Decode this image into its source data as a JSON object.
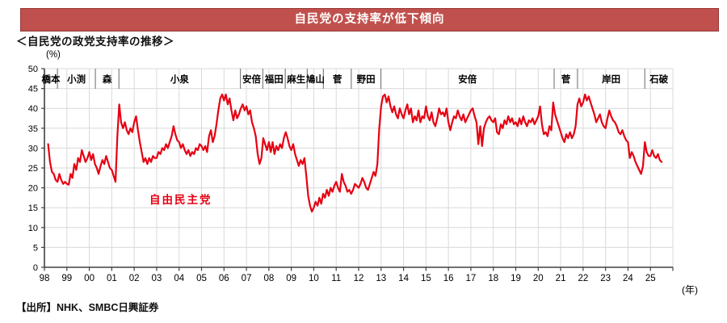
{
  "banner": {
    "title": "自民党の支持率が低下傾向",
    "bg_color": "#c0504d",
    "border_color": "#963634",
    "text_color": "#ffffff"
  },
  "heading": "＜自民党の政党支持率の推移＞",
  "source_note": "【出所】NHK、SMBC日興証券",
  "chart_data": {
    "type": "line",
    "title": "自民党の政党支持率の推移",
    "unit_y": "(%)",
    "unit_x": "(年)",
    "ylim": [
      0,
      50
    ],
    "ytick_step": 5,
    "grid": true,
    "x_start_year": 1998,
    "x_end_year": 2026,
    "x_tick_labels": [
      "98",
      "99",
      "00",
      "01",
      "02",
      "03",
      "04",
      "05",
      "06",
      "07",
      "08",
      "09",
      "10",
      "11",
      "12",
      "13",
      "14",
      "15",
      "16",
      "17",
      "18",
      "19",
      "20",
      "21",
      "22",
      "23",
      "24",
      "25"
    ],
    "line_color": "#e60012",
    "grid_color": "#d9d9d9",
    "axis_color": "#404040",
    "pm_divider_color": "#808080",
    "annotation": {
      "text": "自由民主党",
      "color": "#e60012"
    },
    "pm_terms": [
      {
        "name": "橋本",
        "start": 1998.0,
        "end": 1998.58
      },
      {
        "name": "小渕",
        "start": 1998.58,
        "end": 2000.27
      },
      {
        "name": "森",
        "start": 2000.27,
        "end": 2001.32
      },
      {
        "name": "小泉",
        "start": 2001.32,
        "end": 2006.73
      },
      {
        "name": "安倍",
        "start": 2006.73,
        "end": 2007.73
      },
      {
        "name": "福田",
        "start": 2007.73,
        "end": 2008.73
      },
      {
        "name": "麻生",
        "start": 2008.73,
        "end": 2009.71
      },
      {
        "name": "鳩山",
        "start": 2009.71,
        "end": 2010.43
      },
      {
        "name": "菅",
        "start": 2010.43,
        "end": 2011.67
      },
      {
        "name": "野田",
        "start": 2011.67,
        "end": 2012.99
      },
      {
        "name": "安倍",
        "start": 2012.99,
        "end": 2020.71
      },
      {
        "name": "菅",
        "start": 2020.71,
        "end": 2021.75
      },
      {
        "name": "岸田",
        "start": 2021.75,
        "end": 2024.75
      },
      {
        "name": "石破",
        "start": 2024.75,
        "end": 2026.0
      }
    ],
    "series": [
      {
        "name": "自由民主党",
        "color": "#e60012",
        "start_year_month": "1998-03",
        "interval": "monthly",
        "monthly_values": [
          31,
          26.5,
          24,
          23.5,
          22,
          21.5,
          23.5,
          22,
          21,
          21.5,
          21,
          20.8,
          23.5,
          22.5,
          26,
          24.5,
          27.5,
          26.5,
          29.5,
          28,
          26.5,
          27.5,
          29,
          27,
          28.5,
          26,
          25,
          23.5,
          25.5,
          27,
          26,
          28,
          26.5,
          25,
          24.5,
          23,
          21.5,
          33,
          41,
          36.5,
          35,
          36.5,
          34.5,
          33.5,
          35,
          34,
          36.5,
          38,
          34.5,
          31.5,
          29,
          26.5,
          27.5,
          26,
          27.5,
          26.5,
          28,
          27.5,
          27.5,
          29,
          28.5,
          30,
          29.5,
          31,
          30,
          31.5,
          33,
          35.5,
          33.5,
          32,
          31.5,
          30,
          31,
          29.5,
          28.5,
          29.5,
          28,
          29,
          28.5,
          30,
          29.5,
          31,
          30.5,
          29.5,
          30.5,
          29,
          33,
          34.5,
          31.5,
          33,
          36,
          39.5,
          42.5,
          43.5,
          42,
          43.5,
          41,
          42.5,
          39.5,
          37,
          39.5,
          37.5,
          38.5,
          40,
          41,
          39.5,
          40.5,
          38.5,
          39.5,
          36.5,
          35,
          33,
          28.5,
          26,
          27.5,
          32.5,
          31,
          29.5,
          31.5,
          29,
          31.5,
          28.5,
          30.5,
          29.5,
          31,
          30,
          32.5,
          34,
          32.5,
          30.5,
          29.5,
          31,
          28.5,
          27,
          25.5,
          27,
          26,
          27.5,
          23,
          18,
          15.5,
          14,
          15,
          16.5,
          15.5,
          17.5,
          16,
          18.5,
          17.5,
          19.5,
          18,
          20,
          19,
          20.5,
          21.5,
          20,
          19,
          23.5,
          21.5,
          20.5,
          19,
          19.5,
          18.5,
          19.5,
          21,
          20.5,
          20,
          21,
          22.5,
          21.5,
          20,
          19.5,
          21,
          22.5,
          24,
          23,
          26,
          35,
          40.5,
          43,
          43.5,
          41.5,
          43,
          40.5,
          39,
          40.5,
          38.5,
          37.5,
          40,
          38.5,
          37.5,
          39.5,
          41,
          38.5,
          40,
          36.5,
          38,
          37,
          39.5,
          36.5,
          38,
          37.5,
          40.5,
          38,
          37,
          39,
          36.5,
          35.5,
          37.5,
          40,
          38.5,
          39,
          38,
          40,
          36.5,
          34.5,
          36.5,
          38,
          37.5,
          39.5,
          38,
          37,
          38.5,
          36.5,
          37.5,
          38.5,
          39.5,
          40,
          38,
          36.5,
          31,
          35.5,
          30.5,
          35,
          36.5,
          37.5,
          38,
          37,
          36.5,
          37.5,
          34,
          33.5,
          36,
          35,
          37,
          36,
          38,
          36.5,
          37.5,
          36,
          36.5,
          35.5,
          37.5,
          36,
          38,
          36.5,
          35.5,
          37,
          36.5,
          37.5,
          36,
          37,
          38,
          40.5,
          36,
          33.5,
          34,
          33,
          35.5,
          34.5,
          41.5,
          38.5,
          37,
          35.5,
          34,
          32.5,
          31.5,
          33.5,
          32.5,
          34,
          32.5,
          33.5,
          35.5,
          41,
          42.5,
          40.5,
          41.5,
          43.5,
          42,
          43,
          41.5,
          40,
          38.5,
          36.5,
          37.5,
          38.5,
          36.5,
          35.5,
          35,
          37.5,
          39.5,
          38,
          37,
          36.5,
          35.5,
          34,
          33.5,
          34.5,
          33,
          32,
          31.5,
          27.5,
          29,
          28,
          26.5,
          25.5,
          24.5,
          23.5,
          25.5,
          31.5,
          29,
          28,
          28,
          29.5,
          28,
          27.5,
          28.5,
          27,
          26.5
        ]
      }
    ]
  }
}
